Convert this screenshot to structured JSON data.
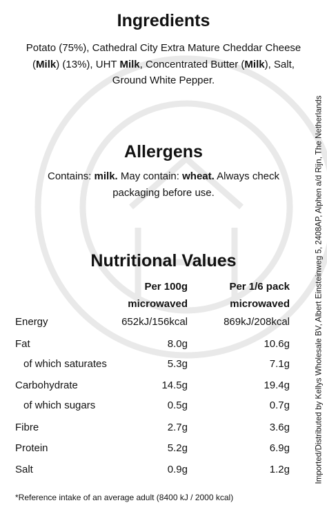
{
  "ingredients": {
    "title": "Ingredients",
    "segments": [
      {
        "text": "Potato (75%), Cathedral City Extra Mature Cheddar Cheese (",
        "bold": false
      },
      {
        "text": "Milk",
        "bold": true
      },
      {
        "text": ") (13%), UHT ",
        "bold": false
      },
      {
        "text": "Milk",
        "bold": true
      },
      {
        "text": ", Concentrated Butter (",
        "bold": false
      },
      {
        "text": "Milk",
        "bold": true
      },
      {
        "text": "), Salt, Ground White Pepper.",
        "bold": false
      }
    ]
  },
  "allergens": {
    "title": "Allergens",
    "segments": [
      {
        "text": "Contains: ",
        "bold": false
      },
      {
        "text": "milk.",
        "bold": true
      },
      {
        "text": " May contain: ",
        "bold": false
      },
      {
        "text": "wheat.",
        "bold": true
      },
      {
        "text": " Always check packaging before use.",
        "bold": false
      }
    ]
  },
  "nutrition": {
    "title": "Nutritional Values",
    "columns": [
      {
        "lines": [
          "Per 100g",
          "microwaved"
        ]
      },
      {
        "lines": [
          "Per 1/6 pack",
          "microwaved"
        ]
      }
    ],
    "rows": [
      {
        "name": "Energy",
        "indent": false,
        "cells": [
          "652kJ/156kcal",
          "869kJ/208kcal"
        ]
      },
      {
        "name": "Fat",
        "indent": false,
        "cells": [
          "8.0g",
          "10.6g"
        ]
      },
      {
        "name": "of which saturates",
        "indent": true,
        "cells": [
          "5.3g",
          "7.1g"
        ]
      },
      {
        "name": "Carbohydrate",
        "indent": false,
        "cells": [
          "14.5g",
          "19.4g"
        ]
      },
      {
        "name": "of which sugars",
        "indent": true,
        "cells": [
          "0.5g",
          "0.7g"
        ]
      },
      {
        "name": "Fibre",
        "indent": false,
        "cells": [
          "2.7g",
          "3.6g"
        ]
      },
      {
        "name": "Protein",
        "indent": false,
        "cells": [
          "5.2g",
          "6.9g"
        ]
      },
      {
        "name": "Salt",
        "indent": false,
        "cells": [
          "0.9g",
          "1.2g"
        ]
      }
    ],
    "footnote": "*Reference intake of an average adult (8400 kJ / 2000 kcal)"
  },
  "side_text": "Imported/Distributed by Kellys Wholesale BV, Albert Einsteinweg 5, 2408AP, Alphen a/d Rijn, The Netherlands"
}
